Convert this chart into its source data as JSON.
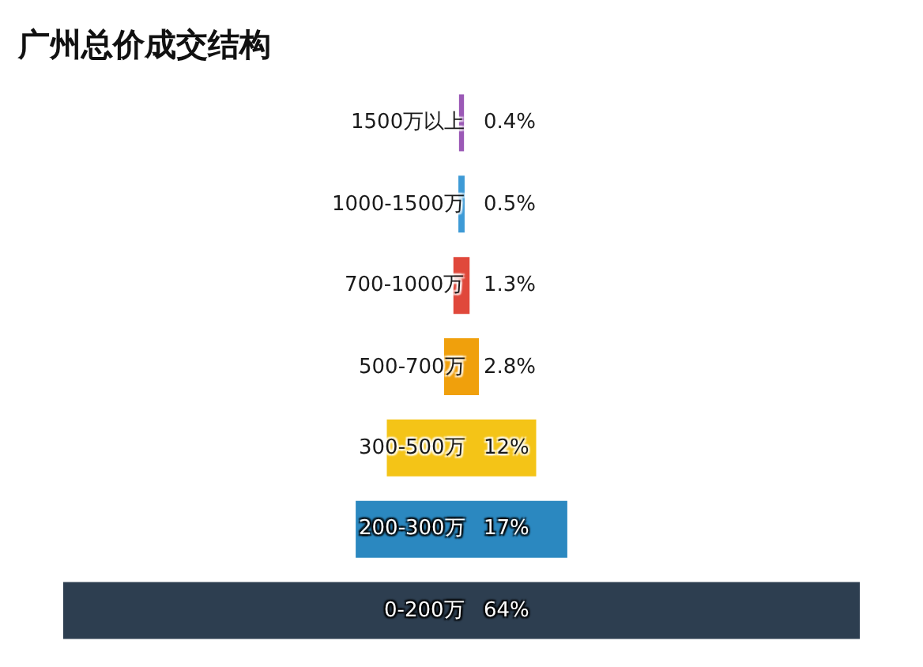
{
  "chart_data": {
    "type": "other",
    "title": "广州总价成交结构",
    "categories": [
      "1500万以上",
      "1000-1500万",
      "700-1000万",
      "500-700万",
      "300-500万",
      "200-300万",
      "0-200万"
    ],
    "values": [
      0.4,
      0.5,
      1.3,
      2.8,
      12,
      17,
      64
    ],
    "value_labels": [
      "0.4%",
      "0.5%",
      "1.3%",
      "2.8%",
      "12%",
      "17%",
      "64%"
    ],
    "colors": [
      "#9b59b6",
      "#3d9ad6",
      "#e0483b",
      "#f0a00c",
      "#f4c417",
      "#2b88c0",
      "#2d3e50"
    ]
  }
}
